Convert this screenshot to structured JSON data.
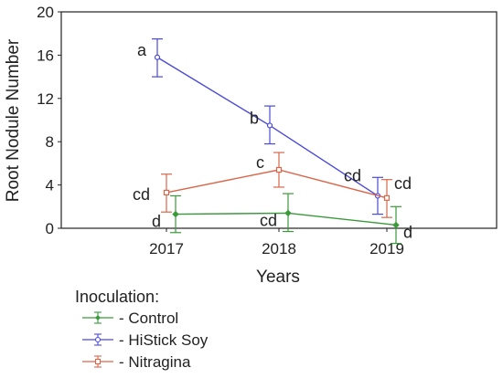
{
  "chart_data": {
    "type": "line",
    "xlabel": "Years",
    "ylabel": "Root Nodule Number",
    "ylim": [
      0,
      20
    ],
    "yticks": [
      "0",
      "4",
      "8",
      "12",
      "16",
      "20"
    ],
    "categories": [
      "2017",
      "2018",
      "2019"
    ],
    "grid": false,
    "legend": {
      "title": "Inoculation:",
      "placement": "bottom-left"
    },
    "series": [
      {
        "name": "- Control",
        "color": "#3a9a3a",
        "marker": "diamond",
        "values": [
          1.3,
          1.4,
          0.3
        ],
        "error_low": [
          -0.4,
          -0.3,
          -1.4
        ],
        "error_high": [
          3.0,
          3.2,
          2.0
        ],
        "letters": [
          "d",
          "cd",
          "d"
        ]
      },
      {
        "name": "- HiStick Soy",
        "color": "#4a4ad8",
        "marker": "circle",
        "values": [
          15.8,
          9.5,
          3.0
        ],
        "error_low": [
          14.0,
          7.8,
          1.3
        ],
        "error_high": [
          17.5,
          11.3,
          4.7
        ],
        "letters": [
          "a",
          "b",
          "cd"
        ]
      },
      {
        "name": "- Nitragina",
        "color": "#d9664a",
        "marker": "square",
        "values": [
          3.3,
          5.4,
          2.8
        ],
        "error_low": [
          1.5,
          3.8,
          1.0
        ],
        "error_high": [
          5.0,
          7.0,
          4.5
        ],
        "letters": [
          "cd",
          "c",
          "cd"
        ]
      }
    ]
  }
}
